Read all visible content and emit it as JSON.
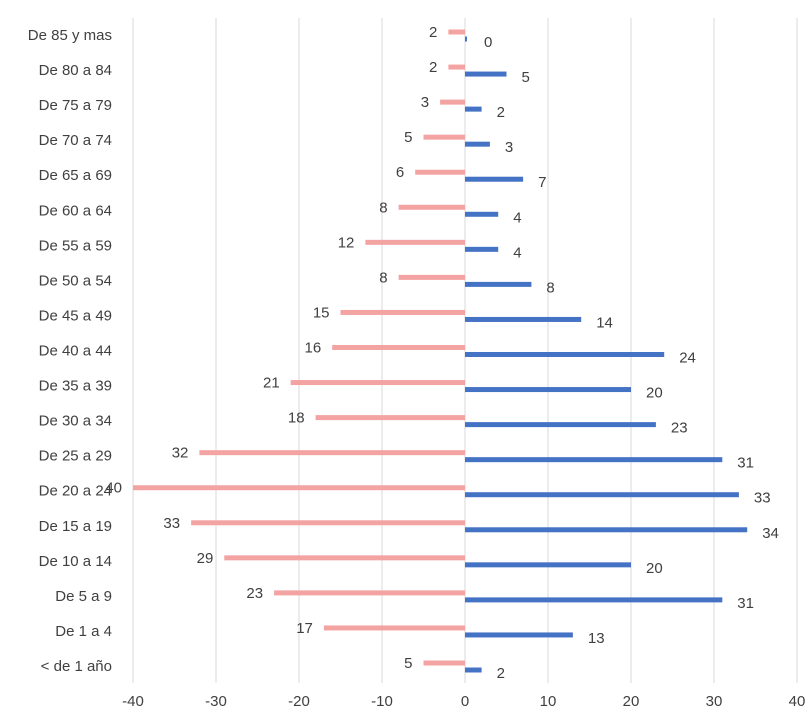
{
  "chart_data": {
    "type": "bar",
    "orientation": "horizontal",
    "categories": [
      "< de 1 año",
      "De 1 a 4",
      "De 5 a 9",
      "De 10 a 14",
      "De 15 a 19",
      "De 20 a 24",
      "De 25 a 29",
      "De 30 a 34",
      "De 35 a 39",
      "De 40 a 44",
      "De 45 a 49",
      "De 50 a 54",
      "De 55 a 59",
      "De 60 a 64",
      "De 65 a 69",
      "De 70 a 74",
      "De 75 a 79",
      "De 80 a 84",
      "De 85 y mas"
    ],
    "series": [
      {
        "color": "#f4a3a3",
        "values": [
          -5,
          -17,
          -23,
          -29,
          -33,
          -40,
          -32,
          -18,
          -21,
          -16,
          -15,
          -8,
          -12,
          -8,
          -6,
          -5,
          -3,
          -2,
          -2
        ],
        "labels": [
          "5",
          "17",
          "23",
          "29",
          "33",
          "40",
          "32",
          "18",
          "21",
          "16",
          "15",
          "8",
          "12",
          "8",
          "6",
          "5",
          "3",
          "2",
          "2"
        ]
      },
      {
        "color": "#4472c4",
        "values": [
          2,
          13,
          31,
          20,
          34,
          33,
          31,
          23,
          20,
          24,
          14,
          8,
          4,
          4,
          7,
          3,
          2,
          5,
          0
        ],
        "labels": [
          "2",
          "13",
          "31",
          "20",
          "34",
          "33",
          "31",
          "23",
          "20",
          "24",
          "14",
          "8",
          "4",
          "4",
          "7",
          "3",
          "2",
          "5",
          "0"
        ]
      }
    ],
    "xlim": [
      -40,
      40
    ],
    "xticks": [
      "-40",
      "-30",
      "-20",
      "-10",
      "0",
      "10",
      "20",
      "30",
      "40"
    ],
    "xtick_values": [
      -40,
      -30,
      -20,
      -10,
      0,
      10,
      20,
      30,
      40
    ],
    "grid": "vertical",
    "legend": "none",
    "gridline_color": "#d9d9d9",
    "text_color": "#404040"
  }
}
